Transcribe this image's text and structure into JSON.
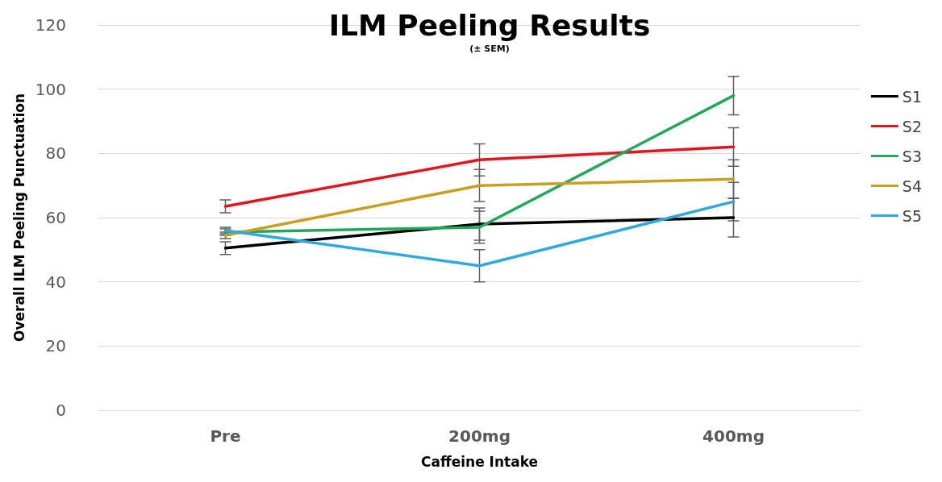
{
  "chart_data": {
    "type": "line",
    "title": "ILM Peeling Results",
    "subtitle": "(± SEM)",
    "xlabel": "Caffeine Intake",
    "ylabel": "Overall ILM Peeling Punctuation",
    "categories": [
      "Pre",
      "200mg",
      "400mg"
    ],
    "series": [
      {
        "name": "S1",
        "color": "#000000",
        "values": [
          50.5,
          58,
          60
        ],
        "errors": [
          2,
          5,
          6
        ]
      },
      {
        "name": "S2",
        "color": "#e3141b",
        "values": [
          63.5,
          78,
          82
        ],
        "errors": [
          2,
          5,
          6
        ]
      },
      {
        "name": "S3",
        "color": "#22a85a",
        "values": [
          55.5,
          57,
          98
        ],
        "errors": [
          1,
          5,
          6
        ]
      },
      {
        "name": "S4",
        "color": "#c8a020",
        "values": [
          54.5,
          70,
          72
        ],
        "errors": [
          1,
          5,
          6
        ]
      },
      {
        "name": "S5",
        "color": "#2eaadf",
        "values": [
          56,
          45,
          65
        ],
        "errors": [
          1,
          5,
          6
        ]
      }
    ],
    "ylim": [
      0,
      120
    ],
    "yticks": [
      0,
      20,
      40,
      60,
      80,
      100,
      120
    ],
    "grid": "y",
    "legend": "right",
    "line_style": "solid"
  }
}
